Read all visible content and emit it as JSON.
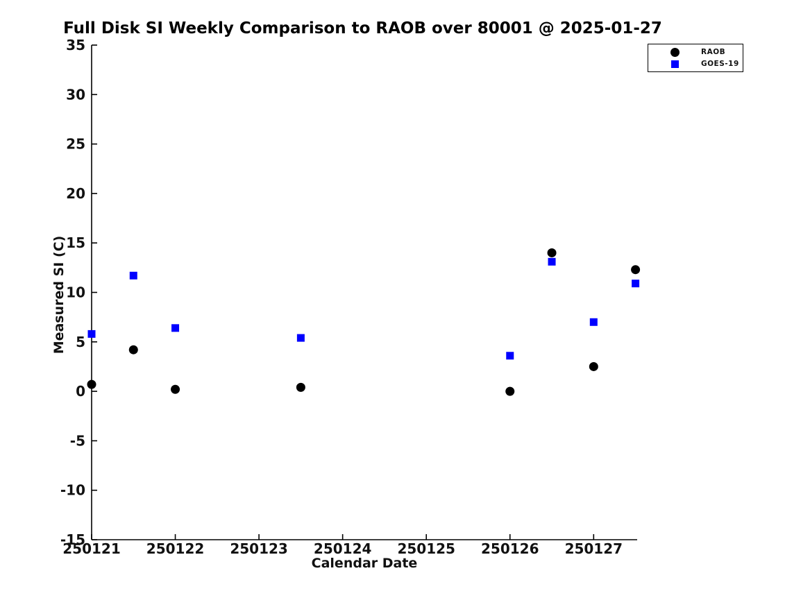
{
  "title": "Full Disk SI Weekly Comparison to RAOB over 80001 @ 2025-01-27",
  "chart_data": {
    "type": "scatter",
    "title": "Full Disk SI Weekly Comparison to RAOB over 80001 @ 2025-01-27",
    "xlabel": "Calendar Date",
    "ylabel": "Measured SI (C)",
    "xlim": [
      250121,
      250127.52
    ],
    "ylim": [
      -15,
      35
    ],
    "xticks": [
      250121,
      250122,
      250123,
      250124,
      250125,
      250126,
      250127
    ],
    "yticks": [
      -15,
      -10,
      -5,
      0,
      5,
      10,
      15,
      20,
      25,
      30,
      35
    ],
    "grid": false,
    "legend_position": "top-right",
    "series": [
      {
        "name": "RAOB",
        "marker": "circle",
        "color": "#000000",
        "points": [
          [
            250121.0,
            0.7
          ],
          [
            250121.5,
            4.2
          ],
          [
            250122.0,
            0.2
          ],
          [
            250123.5,
            0.4
          ],
          [
            250126.0,
            0.0
          ],
          [
            250126.5,
            14.0
          ],
          [
            250127.0,
            2.5
          ],
          [
            250127.5,
            12.3
          ]
        ]
      },
      {
        "name": "GOES-19",
        "marker": "square",
        "color": "#0000ff",
        "points": [
          [
            250121.0,
            5.8
          ],
          [
            250121.5,
            11.7
          ],
          [
            250122.0,
            6.4
          ],
          [
            250123.5,
            5.4
          ],
          [
            250126.0,
            3.6
          ],
          [
            250126.5,
            13.1
          ],
          [
            250127.0,
            7.0
          ],
          [
            250127.5,
            10.9
          ]
        ]
      }
    ]
  }
}
